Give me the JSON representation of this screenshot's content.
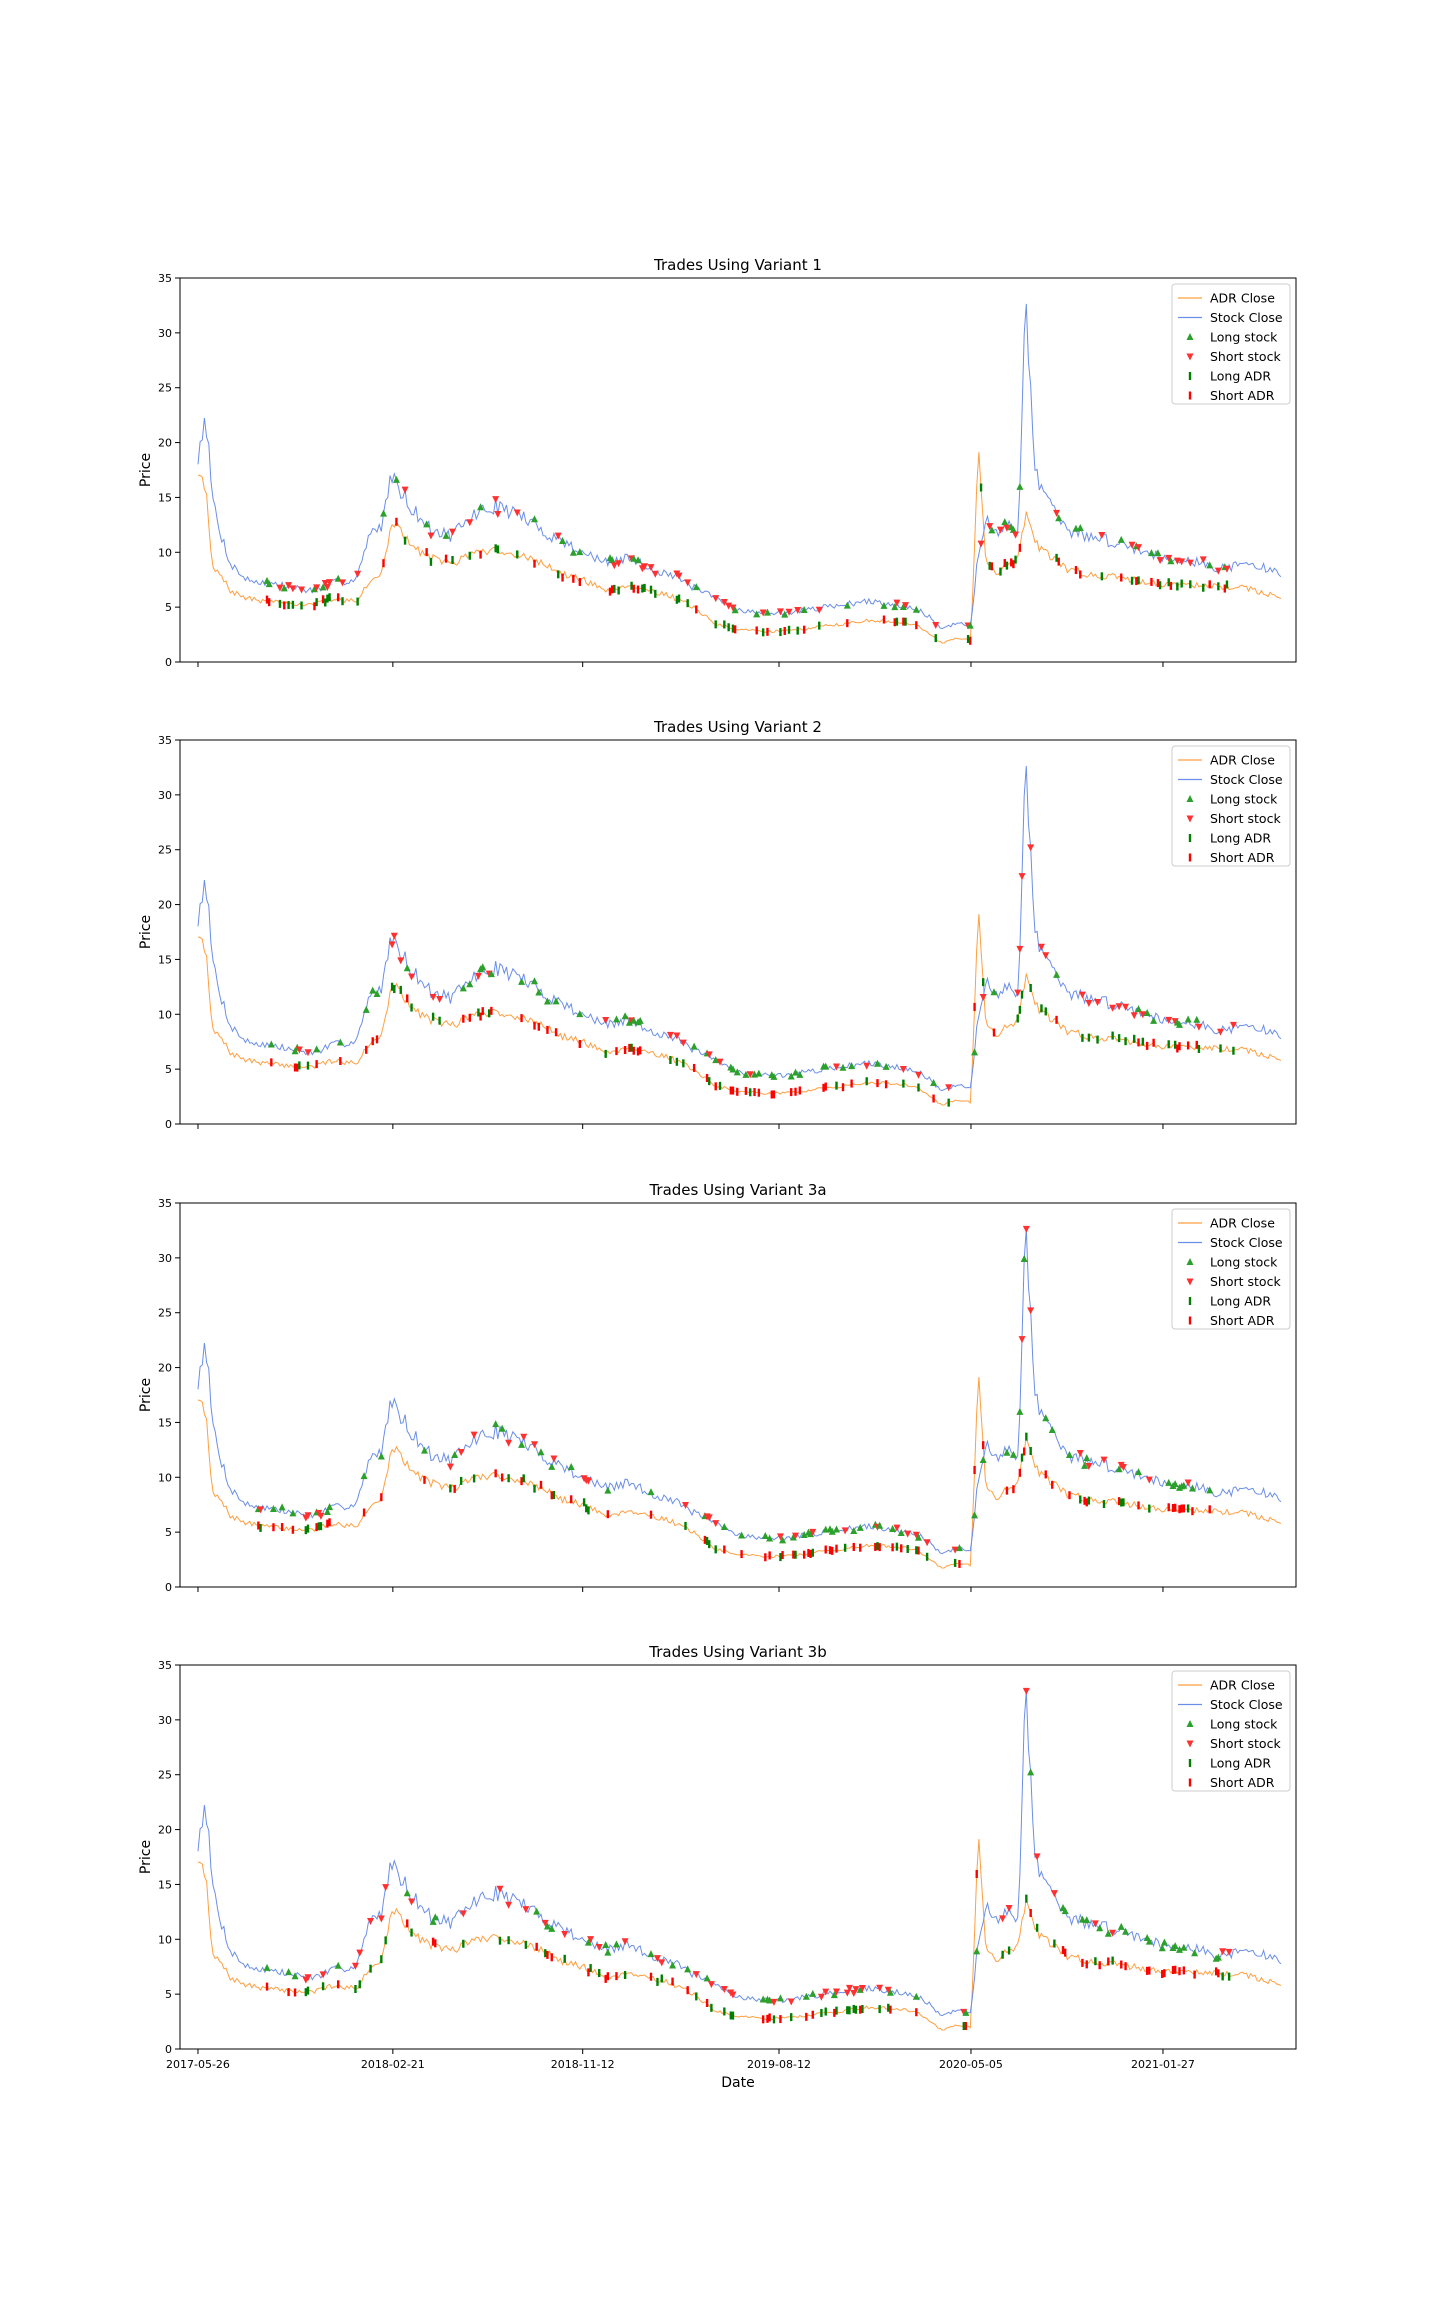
{
  "chart_data": [
    {
      "type": "line",
      "title": "Trades Using Variant 1",
      "xlabel": "",
      "ylabel": "Price",
      "ylim": [
        0,
        35
      ],
      "yticks": [
        0,
        5,
        10,
        15,
        20,
        25,
        30,
        35
      ],
      "xtick_labels": [],
      "xlim": [
        "2017-05-01",
        "2021-07-31"
      ],
      "legend": "top-right",
      "series": [
        {
          "name": "ADR Close",
          "color": "#ff9f40"
        },
        {
          "name": "Stock Close",
          "color": "#6b8ee8"
        },
        {
          "name": "Long stock",
          "color": "#2ca02c",
          "marker": "triangle-up"
        },
        {
          "name": "Short stock",
          "color": "#ff3030",
          "marker": "triangle-down"
        },
        {
          "name": "Long ADR",
          "color": "#008000",
          "marker": "bar"
        },
        {
          "name": "Short ADR",
          "color": "#ff0000",
          "marker": "bar"
        }
      ]
    },
    {
      "type": "line",
      "title": "Trades Using Variant 2",
      "xlabel": "",
      "ylabel": "Price",
      "ylim": [
        0,
        35
      ],
      "yticks": [
        0,
        5,
        10,
        15,
        20,
        25,
        30,
        35
      ],
      "xtick_labels": [],
      "xlim": [
        "2017-05-01",
        "2021-07-31"
      ],
      "legend": "top-right",
      "series": [
        {
          "name": "ADR Close",
          "color": "#ff9f40"
        },
        {
          "name": "Stock Close",
          "color": "#6b8ee8"
        },
        {
          "name": "Long stock",
          "color": "#2ca02c",
          "marker": "triangle-up"
        },
        {
          "name": "Short stock",
          "color": "#ff3030",
          "marker": "triangle-down"
        },
        {
          "name": "Long ADR",
          "color": "#008000",
          "marker": "bar"
        },
        {
          "name": "Short ADR",
          "color": "#ff0000",
          "marker": "bar"
        }
      ]
    },
    {
      "type": "line",
      "title": "Trades Using Variant 3a",
      "xlabel": "",
      "ylabel": "Price",
      "ylim": [
        0,
        35
      ],
      "yticks": [
        0,
        5,
        10,
        15,
        20,
        25,
        30,
        35
      ],
      "xtick_labels": [],
      "xlim": [
        "2017-05-01",
        "2021-07-31"
      ],
      "legend": "top-right",
      "series": [
        {
          "name": "ADR Close",
          "color": "#ff9f40"
        },
        {
          "name": "Stock Close",
          "color": "#6b8ee8"
        },
        {
          "name": "Long stock",
          "color": "#2ca02c",
          "marker": "triangle-up"
        },
        {
          "name": "Short stock",
          "color": "#ff3030",
          "marker": "triangle-down"
        },
        {
          "name": "Long ADR",
          "color": "#008000",
          "marker": "bar"
        },
        {
          "name": "Short ADR",
          "color": "#ff0000",
          "marker": "bar"
        }
      ]
    },
    {
      "type": "line",
      "title": "Trades Using Variant 3b",
      "xlabel": "Date",
      "ylabel": "Price",
      "ylim": [
        0,
        35
      ],
      "yticks": [
        0,
        5,
        10,
        15,
        20,
        25,
        30,
        35
      ],
      "xtick_labels": [
        "2017-05-26",
        "2018-02-21",
        "2018-11-12",
        "2019-08-12",
        "2020-05-05",
        "2021-01-27"
      ],
      "xlim": [
        "2017-05-01",
        "2021-07-31"
      ],
      "legend": "top-right",
      "series": [
        {
          "name": "ADR Close",
          "color": "#ff9f40"
        },
        {
          "name": "Stock Close",
          "color": "#6b8ee8"
        },
        {
          "name": "Long stock",
          "color": "#2ca02c",
          "marker": "triangle-up"
        },
        {
          "name": "Short stock",
          "color": "#ff3030",
          "marker": "triangle-down"
        },
        {
          "name": "Long ADR",
          "color": "#008000",
          "marker": "bar"
        },
        {
          "name": "Short ADR",
          "color": "#ff0000",
          "marker": "bar"
        }
      ]
    }
  ],
  "price_series": {
    "dates": [
      "2017-05-26",
      "2017-06-05",
      "2017-06-15",
      "2017-06-25",
      "2017-07-10",
      "2017-08-01",
      "2017-09-01",
      "2017-10-01",
      "2017-11-01",
      "2017-12-01",
      "2018-01-01",
      "2018-01-20",
      "2018-02-05",
      "2018-02-21",
      "2018-03-01",
      "2018-03-20",
      "2018-04-15",
      "2018-05-15",
      "2018-06-15",
      "2018-07-15",
      "2018-08-15",
      "2018-09-15",
      "2018-10-15",
      "2018-11-12",
      "2018-12-15",
      "2019-01-15",
      "2019-02-15",
      "2019-03-15",
      "2019-04-15",
      "2019-05-15",
      "2019-06-15",
      "2019-07-15",
      "2019-08-12",
      "2019-09-15",
      "2019-10-15",
      "2019-11-15",
      "2019-12-15",
      "2020-01-15",
      "2020-02-15",
      "2020-03-10",
      "2020-03-25",
      "2020-04-15",
      "2020-05-05",
      "2020-05-15",
      "2020-05-25",
      "2020-06-10",
      "2020-06-25",
      "2020-07-10",
      "2020-07-20",
      "2020-08-01",
      "2020-08-15",
      "2020-09-15",
      "2020-10-15",
      "2020-11-15",
      "2020-12-15",
      "2021-01-27",
      "2021-02-20",
      "2021-03-20",
      "2021-04-20",
      "2021-05-20",
      "2021-06-20",
      "2021-07-10"
    ],
    "stock_close": [
      18.5,
      23.0,
      15.0,
      12.0,
      9.0,
      7.5,
      7.2,
      6.8,
      6.5,
      7.2,
      7.6,
      11.5,
      12.5,
      17.5,
      16.0,
      14.0,
      12.0,
      11.5,
      13.5,
      14.2,
      13.5,
      12.0,
      11.0,
      10.0,
      9.0,
      9.5,
      8.5,
      8.0,
      6.8,
      5.8,
      4.8,
      4.5,
      4.4,
      4.7,
      5.0,
      5.3,
      5.5,
      5.3,
      5.0,
      4.0,
      3.0,
      3.5,
      3.3,
      10.0,
      13.0,
      11.5,
      12.5,
      12.0,
      34.0,
      18.0,
      15.0,
      12.0,
      11.5,
      11.0,
      10.5,
      9.5,
      9.5,
      9.0,
      8.5,
      9.0,
      8.5,
      8.0
    ],
    "adr_close": [
      16.5,
      16.3,
      8.5,
      8.0,
      6.5,
      5.8,
      5.5,
      5.3,
      5.2,
      5.8,
      5.5,
      7.5,
      8.0,
      13.0,
      12.0,
      10.5,
      9.5,
      9.0,
      10.0,
      10.2,
      9.8,
      9.0,
      8.0,
      7.5,
      6.5,
      7.0,
      6.5,
      6.0,
      5.0,
      3.5,
      3.0,
      2.8,
      2.8,
      3.0,
      3.3,
      3.5,
      3.8,
      3.7,
      3.5,
      2.5,
      1.7,
      2.2,
      2.0,
      20.0,
      9.5,
      8.0,
      9.0,
      9.5,
      13.5,
      11.0,
      10.0,
      8.5,
      8.0,
      7.8,
      7.5,
      7.0,
      7.2,
      7.0,
      6.8,
      6.8,
      6.2,
      6.0
    ]
  }
}
